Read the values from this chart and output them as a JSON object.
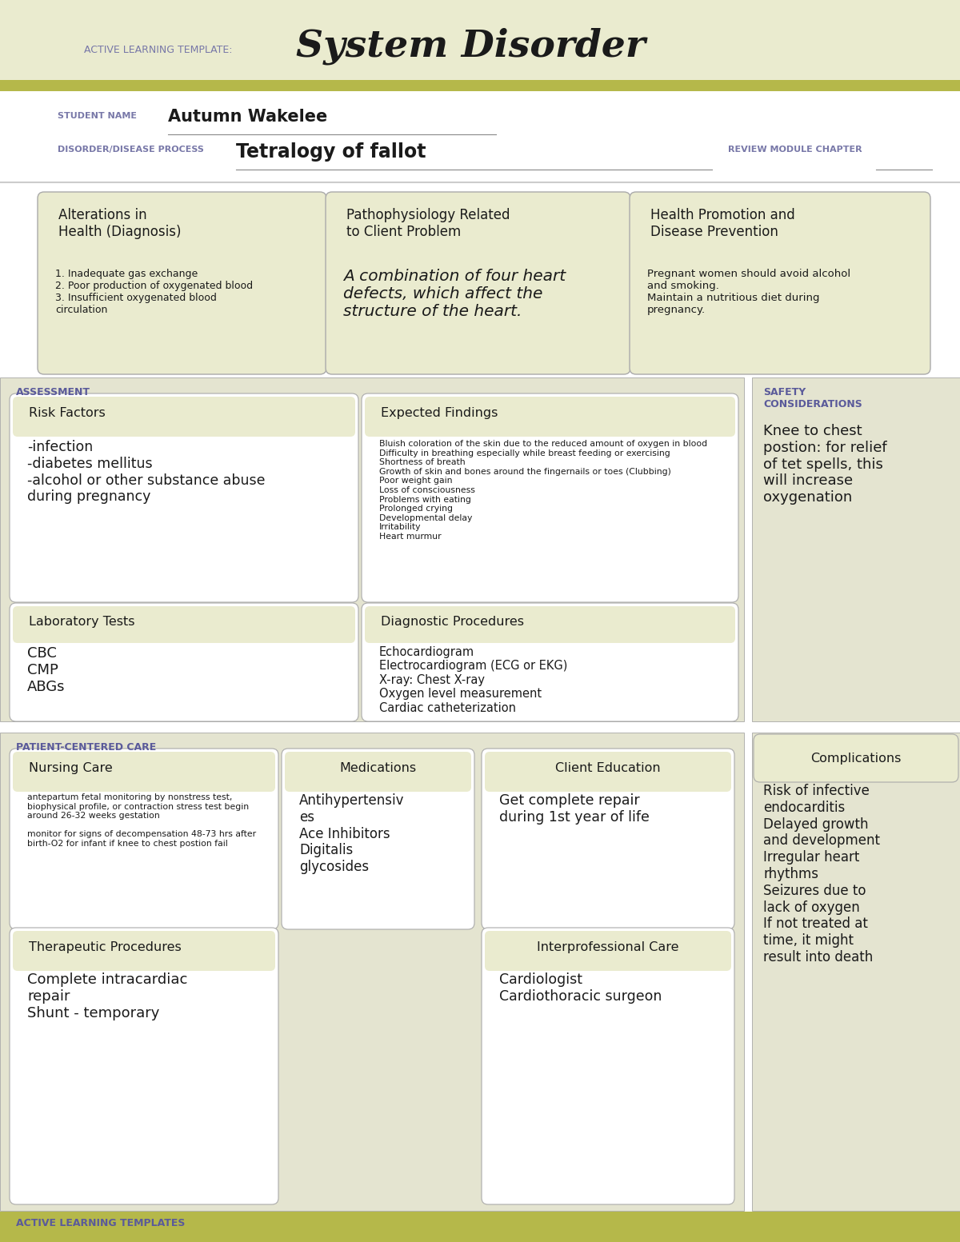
{
  "bg_color_top": "#eaebcf",
  "bg_color_white": "#ffffff",
  "header_bar_color": "#b5b84a",
  "box_fill": "#eaebcf",
  "box_fill_white": "#ffffff",
  "section_bg": "#e4e4d0",
  "box_edge": "#aaaaaa",
  "title_template_label": "ACTIVE LEARNING TEMPLATE:",
  "title_main": "System Disorder",
  "student_name_label": "STUDENT NAME",
  "student_name": "Autumn Wakelee",
  "disorder_label": "DISORDER/DISEASE PROCESS",
  "disorder_name": "Tetralogy of fallot",
  "review_label": "REVIEW MODULE CHAPTER",
  "assessment_label": "ASSESSMENT",
  "safety_label": "SAFETY\nCONSIDERATIONS",
  "patient_care_label": "PATIENT-CENTERED CARE",
  "box1_title": "Alterations in\nHealth (Diagnosis)",
  "box1_body": "1. Inadequate gas exchange\n2. Poor production of oxygenated blood\n3. Insufficient oxygenated blood\ncirculation",
  "box2_title": "Pathophysiology Related\nto Client Problem",
  "box2_body": "A combination of four heart\ndefects, which affect the\nstructure of the heart.",
  "box3_title": "Health Promotion and\nDisease Prevention",
  "box3_body": "Pregnant women should avoid alcohol\nand smoking.\nMaintain a nutritious diet during\npregnancy.",
  "risk_title": "Risk Factors",
  "risk_body": "-infection\n-diabetes mellitus\n-alcohol or other substance abuse\nduring pregnancy",
  "expected_title": "Expected Findings",
  "expected_body": "Bluish coloration of the skin due to the reduced amount of oxygen in blood\nDifficulty in breathing especially while breast feeding or exercising\nShortness of breath\nGrowth of skin and bones around the fingernails or toes (Clubbing)\nPoor weight gain\nLoss of consciousness\nProblems with eating\nProlonged crying\nDevelopmental delay\nIrritability\nHeart murmur",
  "safety_body": "Knee to chest\npostion: for relief\nof tet spells, this\nwill increase\noxygenation",
  "lab_title": "Laboratory Tests",
  "lab_body": "CBC\nCMP\nABGs",
  "diag_title": "Diagnostic Procedures",
  "diag_body": "Echocardiogram\nElectrocardiogram (ECG or EKG)\nX-ray: Chest X-ray\nOxygen level measurement\nCardiac catheterization",
  "nursing_title": "Nursing Care",
  "nursing_body": "antepartum fetal monitoring by nonstress test,\nbiophysical profile, or contraction stress test begin\naround 26-32 weeks gestation\n\nmonitor for signs of decompensation 48-73 hrs after\nbirth-O2 for infant if knee to chest postion fail",
  "meds_title": "Medications",
  "meds_body": "Antihypertensiv\nes\nAce Inhibitors\nDigitalis\nglycosides",
  "client_ed_title": "Client Education",
  "client_ed_body": "Get complete repair\nduring 1st year of life",
  "complications_title": "Complications",
  "complications_body": "Risk of infective\nendocarditis\nDelayed growth\nand development\nIrregular heart\nrhythms\nSeizures due to\nlack of oxygen\nIf not treated at\ntime, it might\nresult into death",
  "therapeutic_title": "Therapeutic Procedures",
  "therapeutic_body": "Complete intracardiac\nrepair\nShunt - temporary",
  "interpro_title": "Interprofessional Care",
  "interpro_body": "Cardiologist\nCardiothoracic surgeon",
  "footer_label": "ACTIVE LEARNING TEMPLATES",
  "purple_color": "#7070a0",
  "dark_text": "#1a1a1a",
  "title_color": "#1a1a1a",
  "section_label_color": "#5a5a9a",
  "label_color": "#7878a8"
}
